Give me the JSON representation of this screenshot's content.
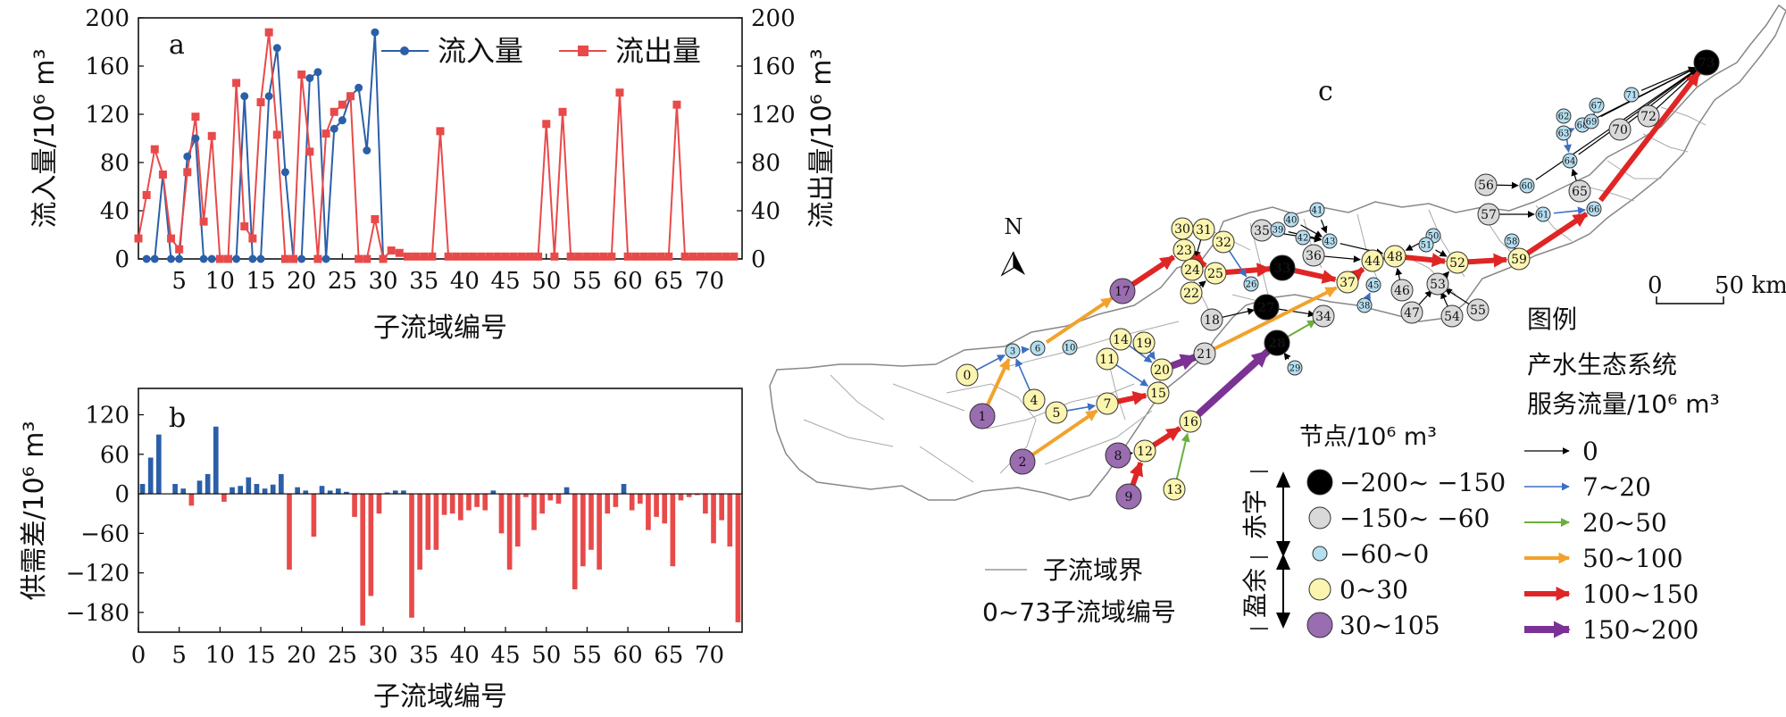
{
  "chart_data": [
    {
      "type": "line",
      "panel_label": "a",
      "xlabel": "子流域编号",
      "ylabel_left": "流入量/10⁶ m³",
      "ylabel_right": "流出量/10⁶ m³",
      "xlim": [
        0,
        74
      ],
      "ylim": [
        0,
        200
      ],
      "xticks": [
        5,
        10,
        15,
        20,
        25,
        30,
        35,
        40,
        45,
        50,
        55,
        60,
        65,
        70
      ],
      "yticks": [
        0,
        40,
        80,
        120,
        160,
        200
      ],
      "legend_position": "top-right",
      "series": [
        {
          "name": "流入量",
          "color": "#2b5fa8",
          "marker": "circle",
          "x": [
            1,
            2,
            3,
            4,
            5,
            6,
            7,
            8,
            9,
            10,
            11,
            12,
            13,
            14,
            15,
            16,
            17,
            18,
            19,
            20,
            21,
            22,
            23,
            24,
            25,
            26,
            27,
            28,
            29,
            30
          ],
          "y": [
            0,
            0,
            70,
            0,
            0,
            85,
            100,
            0,
            0,
            0,
            0,
            0,
            135,
            0,
            0,
            135,
            175,
            72,
            0,
            0,
            150,
            155,
            0,
            108,
            115,
            135,
            142,
            90,
            188,
            0
          ]
        },
        {
          "name": "流出量",
          "color": "#e84a4a",
          "marker": "square",
          "x": [
            0,
            1,
            2,
            3,
            4,
            5,
            6,
            7,
            8,
            9,
            10,
            11,
            12,
            13,
            14,
            15,
            16,
            17,
            18,
            19,
            20,
            21,
            22,
            23,
            24,
            25,
            26,
            27,
            28,
            29,
            30,
            31,
            32,
            33,
            34,
            35,
            36,
            37,
            38,
            39,
            40,
            41,
            42,
            43,
            44,
            45,
            46,
            47,
            48,
            49,
            50,
            51,
            52,
            53,
            54,
            55,
            56,
            57,
            58,
            59,
            60,
            61,
            62,
            63,
            64,
            65,
            66,
            67,
            68,
            69,
            70,
            71,
            72,
            73
          ],
          "y": [
            17,
            53,
            91,
            70,
            17,
            8,
            72,
            118,
            31,
            102,
            0,
            0,
            146,
            27,
            17,
            130,
            188,
            103,
            0,
            0,
            153,
            89,
            0,
            104,
            122,
            128,
            135,
            0,
            0,
            33,
            0,
            7,
            5,
            2,
            2,
            2,
            2,
            106,
            2,
            2,
            2,
            2,
            2,
            2,
            2,
            2,
            2,
            2,
            2,
            2,
            112,
            2,
            122,
            2,
            2,
            2,
            2,
            2,
            2,
            138,
            2,
            2,
            2,
            2,
            2,
            2,
            128,
            2,
            2,
            2,
            2,
            2,
            2,
            2
          ]
        }
      ]
    },
    {
      "type": "bar",
      "panel_label": "b",
      "xlabel": "子流域编号",
      "ylabel": "供需差/10⁶ m³",
      "xlim": [
        0,
        74
      ],
      "ylim": [
        -210,
        160
      ],
      "xticks": [
        0,
        5,
        10,
        15,
        20,
        25,
        30,
        35,
        40,
        45,
        50,
        55,
        60,
        65,
        70
      ],
      "yticks": [
        -180,
        -120,
        -60,
        0,
        60,
        120
      ],
      "positive_color": "#2b5fa8",
      "negative_color": "#e84a4a",
      "x": [
        0,
        1,
        2,
        3,
        4,
        5,
        6,
        7,
        8,
        9,
        10,
        11,
        12,
        13,
        14,
        15,
        16,
        17,
        18,
        19,
        20,
        21,
        22,
        23,
        24,
        25,
        26,
        27,
        28,
        29,
        30,
        31,
        32,
        33,
        34,
        35,
        36,
        37,
        38,
        39,
        40,
        41,
        42,
        43,
        44,
        45,
        46,
        47,
        48,
        49,
        50,
        51,
        52,
        53,
        54,
        55,
        56,
        57,
        58,
        59,
        60,
        61,
        62,
        63,
        64,
        65,
        66,
        67,
        68,
        69,
        70,
        71,
        72,
        73
      ],
      "values": [
        15,
        55,
        90,
        0,
        15,
        8,
        -18,
        20,
        30,
        102,
        -12,
        10,
        12,
        25,
        15,
        8,
        14,
        30,
        -115,
        10,
        5,
        -65,
        12,
        5,
        8,
        3,
        -35,
        -200,
        -155,
        -30,
        2,
        5,
        5,
        -188,
        -115,
        -85,
        -85,
        -32,
        -30,
        -40,
        -25,
        -20,
        -25,
        5,
        -60,
        -115,
        -80,
        -5,
        -55,
        -30,
        -10,
        -15,
        10,
        -145,
        -110,
        -85,
        -115,
        -30,
        -20,
        15,
        -25,
        -15,
        -55,
        -35,
        -45,
        -110,
        -10,
        -5,
        -2,
        -30,
        -75,
        -40,
        -80,
        -195
      ]
    }
  ],
  "map": {
    "panel_label": "c",
    "north_label": "N",
    "scale_bar": {
      "start_label": "0",
      "end_label": "50 km"
    },
    "legend": {
      "title": "图例",
      "flow_title_line1": "产水生态系统",
      "flow_title_line2": "服务流量/10⁶ m³",
      "flow_classes": [
        {
          "label": "0",
          "color": "#000000",
          "width": 1.2,
          "head": 8
        },
        {
          "label": "7~20",
          "color": "#3b6fc4",
          "width": 1.6,
          "head": 9
        },
        {
          "label": "20~50",
          "color": "#6aaf3b",
          "width": 2,
          "head": 10
        },
        {
          "label": "50~100",
          "color": "#f2a22c",
          "width": 4,
          "head": 13
        },
        {
          "label": "100~150",
          "color": "#e02525",
          "width": 6,
          "head": 16
        },
        {
          "label": "150~200",
          "color": "#7b3294",
          "width": 8,
          "head": 19
        }
      ],
      "node_title": "节点/10⁶ m³",
      "node_classes": [
        {
          "label": "−200~ −150",
          "color": "#000000"
        },
        {
          "label": "−150~ −60",
          "color": "#d9d9d9"
        },
        {
          "label": "−60~0",
          "color": "#b5def0"
        },
        {
          "label": "0~30",
          "color": "#fbf5b0"
        },
        {
          "label": "30~105",
          "color": "#9a6cb0"
        }
      ],
      "deficit_label": "赤字",
      "surplus_label": "盈余",
      "boundary_label": "子流域界",
      "numbering_label": "0~73子流域编号"
    },
    "nodes": [
      {
        "id": "0",
        "cls": 4
      },
      {
        "id": "1",
        "cls": 5
      },
      {
        "id": "2",
        "cls": 5
      },
      {
        "id": "3",
        "cls": 3
      },
      {
        "id": "4",
        "cls": 4
      },
      {
        "id": "5",
        "cls": 4
      },
      {
        "id": "6",
        "cls": 3
      },
      {
        "id": "7",
        "cls": 4
      },
      {
        "id": "8",
        "cls": 5
      },
      {
        "id": "9",
        "cls": 5
      },
      {
        "id": "10",
        "cls": 3
      },
      {
        "id": "11",
        "cls": 4
      },
      {
        "id": "12",
        "cls": 4
      },
      {
        "id": "13",
        "cls": 4
      },
      {
        "id": "14",
        "cls": 4
      },
      {
        "id": "15",
        "cls": 4
      },
      {
        "id": "16",
        "cls": 4
      },
      {
        "id": "17",
        "cls": 5
      },
      {
        "id": "18",
        "cls": 2
      },
      {
        "id": "19",
        "cls": 4
      },
      {
        "id": "20",
        "cls": 4
      },
      {
        "id": "21",
        "cls": 2
      },
      {
        "id": "22",
        "cls": 4
      },
      {
        "id": "23",
        "cls": 4
      },
      {
        "id": "24",
        "cls": 4
      },
      {
        "id": "25",
        "cls": 4
      },
      {
        "id": "26",
        "cls": 3
      },
      {
        "id": "27",
        "cls": 1
      },
      {
        "id": "28",
        "cls": 1
      },
      {
        "id": "29",
        "cls": 3
      },
      {
        "id": "30",
        "cls": 4
      },
      {
        "id": "31",
        "cls": 4
      },
      {
        "id": "32",
        "cls": 4
      },
      {
        "id": "33",
        "cls": 1
      },
      {
        "id": "34",
        "cls": 2
      },
      {
        "id": "35",
        "cls": 2
      },
      {
        "id": "36",
        "cls": 2
      },
      {
        "id": "37",
        "cls": 4
      },
      {
        "id": "38",
        "cls": 3
      },
      {
        "id": "39",
        "cls": 3
      },
      {
        "id": "40",
        "cls": 3
      },
      {
        "id": "41",
        "cls": 3
      },
      {
        "id": "42",
        "cls": 3
      },
      {
        "id": "43",
        "cls": 3
      },
      {
        "id": "44",
        "cls": 4
      },
      {
        "id": "45",
        "cls": 3
      },
      {
        "id": "46",
        "cls": 2
      },
      {
        "id": "47",
        "cls": 2
      },
      {
        "id": "48",
        "cls": 4
      },
      {
        "id": "50",
        "cls": 3
      },
      {
        "id": "51",
        "cls": 3
      },
      {
        "id": "52",
        "cls": 4
      },
      {
        "id": "53",
        "cls": 2
      },
      {
        "id": "54",
        "cls": 2
      },
      {
        "id": "55",
        "cls": 2
      },
      {
        "id": "56",
        "cls": 2
      },
      {
        "id": "57",
        "cls": 2
      },
      {
        "id": "58",
        "cls": 3
      },
      {
        "id": "59",
        "cls": 4
      },
      {
        "id": "60",
        "cls": 3
      },
      {
        "id": "61",
        "cls": 3
      },
      {
        "id": "62",
        "cls": 3
      },
      {
        "id": "63",
        "cls": 3
      },
      {
        "id": "64",
        "cls": 3
      },
      {
        "id": "65",
        "cls": 2
      },
      {
        "id": "66",
        "cls": 3
      },
      {
        "id": "67",
        "cls": 3
      },
      {
        "id": "68",
        "cls": 3
      },
      {
        "id": "69",
        "cls": 3
      },
      {
        "id": "70",
        "cls": 2
      },
      {
        "id": "71",
        "cls": 3
      },
      {
        "id": "72",
        "cls": 2
      },
      {
        "id": "73",
        "cls": 1
      }
    ],
    "flows": [
      {
        "from": "2",
        "to": "7",
        "cls": 3
      },
      {
        "from": "1",
        "to": "3",
        "cls": 3
      },
      {
        "from": "6",
        "to": "17",
        "cls": 3
      },
      {
        "from": "0",
        "to": "3",
        "cls": 1
      },
      {
        "from": "4",
        "to": "3",
        "cls": 1
      },
      {
        "from": "5",
        "to": "7",
        "cls": 1
      },
      {
        "from": "3",
        "to": "6",
        "cls": 1
      },
      {
        "from": "7",
        "to": "15",
        "cls": 4
      },
      {
        "from": "11",
        "to": "15",
        "cls": 1
      },
      {
        "from": "14",
        "to": "20",
        "cls": 1
      },
      {
        "from": "19",
        "to": "20",
        "cls": 1
      },
      {
        "from": "15",
        "to": "20",
        "cls": 4
      },
      {
        "from": "20",
        "to": "21",
        "cls": 5
      },
      {
        "from": "9",
        "to": "12",
        "cls": 4
      },
      {
        "from": "8",
        "to": "12",
        "cls": 0
      },
      {
        "from": "12",
        "to": "16",
        "cls": 4
      },
      {
        "from": "13",
        "to": "16",
        "cls": 2
      },
      {
        "from": "16",
        "to": "28",
        "cls": 5
      },
      {
        "from": "29",
        "to": "28",
        "cls": 0
      },
      {
        "from": "28",
        "to": "34",
        "cls": 2
      },
      {
        "from": "17",
        "to": "23",
        "cls": 4
      },
      {
        "from": "30",
        "to": "23",
        "cls": 0
      },
      {
        "from": "31",
        "to": "24",
        "cls": 0
      },
      {
        "from": "22",
        "to": "25",
        "cls": 0
      },
      {
        "from": "23",
        "to": "25",
        "cls": 4
      },
      {
        "from": "24",
        "to": "25",
        "cls": 0
      },
      {
        "from": "25",
        "to": "33",
        "cls": 4
      },
      {
        "from": "32",
        "to": "26",
        "cls": 1
      },
      {
        "from": "18",
        "to": "27",
        "cls": 0
      },
      {
        "from": "27",
        "to": "34",
        "cls": 0
      },
      {
        "from": "21",
        "to": "37",
        "cls": 3
      },
      {
        "from": "33",
        "to": "37",
        "cls": 4
      },
      {
        "from": "37",
        "to": "44",
        "cls": 4
      },
      {
        "from": "36",
        "to": "44",
        "cls": 0
      },
      {
        "from": "38",
        "to": "45",
        "cls": 1
      },
      {
        "from": "35",
        "to": "43",
        "cls": 0
      },
      {
        "from": "39",
        "to": "43",
        "cls": 0
      },
      {
        "from": "40",
        "to": "43",
        "cls": 0
      },
      {
        "from": "41",
        "to": "43",
        "cls": 0
      },
      {
        "from": "42",
        "to": "43",
        "cls": 0
      },
      {
        "from": "43",
        "to": "48",
        "cls": 0
      },
      {
        "from": "44",
        "to": "48",
        "cls": 4
      },
      {
        "from": "50",
        "to": "48",
        "cls": 0
      },
      {
        "from": "46",
        "to": "48",
        "cls": 0
      },
      {
        "from": "48",
        "to": "52",
        "cls": 4
      },
      {
        "from": "51",
        "to": "52",
        "cls": 0
      },
      {
        "from": "53",
        "to": "52",
        "cls": 0
      },
      {
        "from": "47",
        "to": "53",
        "cls": 0
      },
      {
        "from": "54",
        "to": "53",
        "cls": 0
      },
      {
        "from": "55",
        "to": "53",
        "cls": 0
      },
      {
        "from": "52",
        "to": "59",
        "cls": 4
      },
      {
        "from": "58",
        "to": "59",
        "cls": 1
      },
      {
        "from": "59",
        "to": "66",
        "cls": 4
      },
      {
        "from": "57",
        "to": "61",
        "cls": 0
      },
      {
        "from": "61",
        "to": "66",
        "cls": 1
      },
      {
        "from": "56",
        "to": "60",
        "cls": 0
      },
      {
        "from": "65",
        "to": "64",
        "cls": 0
      },
      {
        "from": "62",
        "to": "64",
        "cls": 1
      },
      {
        "from": "63",
        "to": "68",
        "cls": 1
      },
      {
        "from": "67",
        "to": "69",
        "cls": 1
      },
      {
        "from": "60",
        "to": "73",
        "cls": 0
      },
      {
        "from": "64",
        "to": "73",
        "cls": 0
      },
      {
        "from": "68",
        "to": "73",
        "cls": 0
      },
      {
        "from": "69",
        "to": "73",
        "cls": 0
      },
      {
        "from": "70",
        "to": "73",
        "cls": 0
      },
      {
        "from": "71",
        "to": "73",
        "cls": 0
      },
      {
        "from": "72",
        "to": "73",
        "cls": 0
      },
      {
        "from": "66",
        "to": "73",
        "cls": 4
      }
    ]
  }
}
